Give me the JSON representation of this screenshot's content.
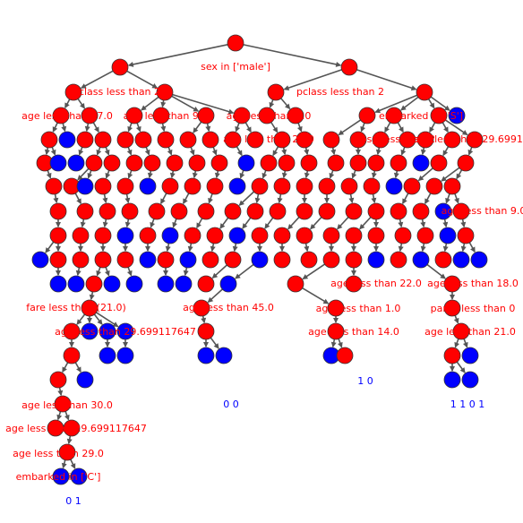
{
  "colors": {
    "internal_node": "#ff0000",
    "leaf_node": "#0000ff",
    "edge": "#555555",
    "label_text": "#ff0000",
    "leaf_value_text": "#0000ff",
    "background": "#ffffff"
  },
  "labels": [
    "sex in ['male']",
    "pclass less than 2",
    "pclass less than 2",
    "age less than 17.0",
    "age less than 9.0",
    "age less than 2.0",
    "embarked in ['S']",
    "age less than 23.0",
    "sibsp less than 2",
    "age less than 29.699117647",
    "parch less than 0",
    "age less than 18.0",
    "age less than 22.0",
    "age less than 1.0",
    "age less than 14.0",
    "age less than 21.0",
    "fare less than (21.0)",
    "age less than 45.0",
    "age less than 29.699117647",
    "age less than 30.0",
    "age less than 29.699117647",
    "age less than 29.0",
    "embarked in ['C']",
    "age less than 9.0"
  ],
  "leaf_values": [
    "0 1",
    "0 0",
    "1 0",
    "1 1 0 1"
  ]
}
